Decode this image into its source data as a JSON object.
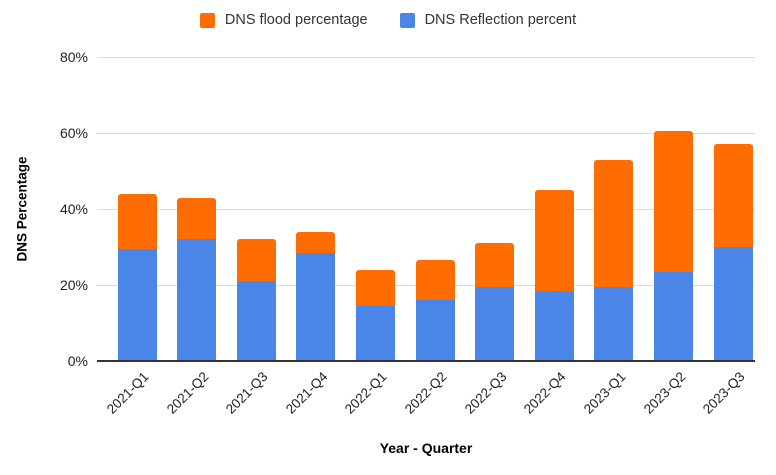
{
  "chart_data": {
    "type": "bar",
    "stacked": true,
    "title": "",
    "xlabel": "Year - Quarter",
    "ylabel": "DNS Percentage",
    "ylim": [
      0,
      80
    ],
    "ytick_values": [
      0,
      20,
      40,
      60,
      80
    ],
    "ytick_labels": [
      "0%",
      "20%",
      "40%",
      "60%",
      "80%"
    ],
    "grid": true,
    "legend_position": "top",
    "categories": [
      "2021-Q1",
      "2021-Q2",
      "2021-Q3",
      "2021-Q4",
      "2022-Q1",
      "2022-Q2",
      "2022-Q3",
      "2022-Q4",
      "2023-Q1",
      "2023-Q2",
      "2023-Q3"
    ],
    "series": [
      {
        "name": "DNS flood percentage",
        "color": "#FF6D01",
        "stack_order": "top",
        "values": [
          14.5,
          11,
          11,
          5.5,
          9.5,
          10.5,
          11.5,
          26.5,
          33.5,
          37,
          27
        ]
      },
      {
        "name": "DNS Reflection percent",
        "color": "#4A86E8",
        "stack_order": "bottom",
        "values": [
          29.5,
          32,
          21,
          28.5,
          14.5,
          16,
          19.5,
          18.5,
          19.5,
          23.5,
          30
        ]
      }
    ],
    "stacked_totals": [
      44,
      43,
      32,
      34,
      24,
      26.5,
      31,
      45,
      53,
      60.5,
      57
    ]
  },
  "colors": {
    "axis_line": "#333333",
    "gridline": "#dcdcdc",
    "tick_text": "#222222",
    "legend_text": "#333333",
    "background": "#ffffff"
  }
}
